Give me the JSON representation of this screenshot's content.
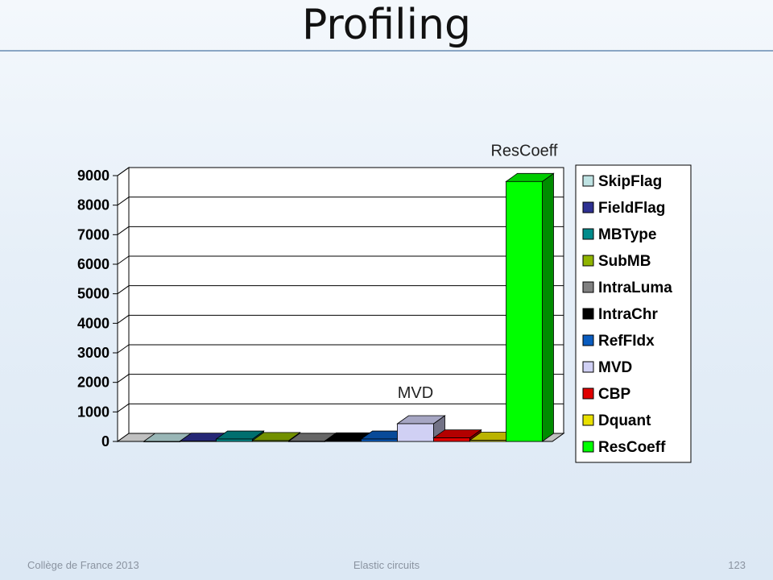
{
  "slide": {
    "title": "Profiling",
    "footer_left": "Collège de France 2013",
    "footer_center": "Elastic circuits",
    "footer_right": "123"
  },
  "chart_data": {
    "type": "bar",
    "title": "",
    "xlabel": "",
    "ylabel": "",
    "ylim": [
      0,
      9000
    ],
    "yticks": [
      0,
      1000,
      2000,
      3000,
      4000,
      5000,
      6000,
      7000,
      8000,
      9000
    ],
    "grid": true,
    "legend_position": "right",
    "categories": [
      "SkipFlag",
      "FieldFlag",
      "MBType",
      "SubMB",
      "IntraLuma",
      "IntraChr",
      "RefFIdx",
      "MVD",
      "CBP",
      "Dquant",
      "ResCoeff"
    ],
    "values": [
      0,
      10,
      80,
      30,
      5,
      20,
      80,
      600,
      120,
      40,
      8800
    ],
    "colors": [
      "#bfe3e3",
      "#2e3192",
      "#008b8b",
      "#8fb400",
      "#808080",
      "#000000",
      "#0a5cbf",
      "#d0d0f4",
      "#e00000",
      "#e8e000",
      "#00ff00"
    ],
    "annotations": [
      {
        "text": "ResCoeff",
        "category": "ResCoeff"
      },
      {
        "text": "MVD",
        "category": "MVD"
      }
    ]
  }
}
